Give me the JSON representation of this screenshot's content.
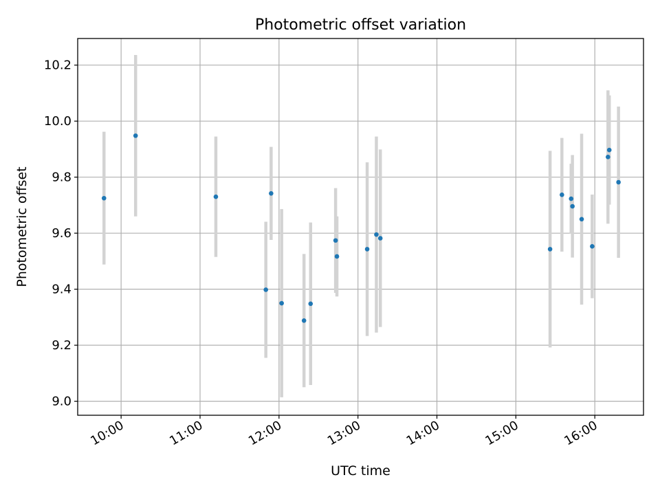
{
  "chart_data": {
    "type": "scatter",
    "title": "Photometric offset variation",
    "xlabel": "UTC time",
    "ylabel": "Photometric offset",
    "x_is_time": true,
    "xlim": [
      "09:27",
      "16:37"
    ],
    "ylim": [
      8.95,
      10.295
    ],
    "xticks": [
      "10:00",
      "11:00",
      "12:00",
      "13:00",
      "14:00",
      "15:00",
      "16:00"
    ],
    "yticks": [
      9.0,
      9.2,
      9.4,
      9.6,
      9.8,
      10.0,
      10.2
    ],
    "ytick_labels": [
      "9.0",
      "9.2",
      "9.4",
      "9.6",
      "9.8",
      "10.0",
      "10.2"
    ],
    "grid": true,
    "point_color": "#1f77b4",
    "errorbar_color": "#d3d3d3",
    "points": [
      {
        "x": "09:47",
        "y": 9.725,
        "err": 0.237
      },
      {
        "x": "10:11",
        "y": 9.948,
        "err": 0.288
      },
      {
        "x": "11:12",
        "y": 9.73,
        "err": 0.215
      },
      {
        "x": "11:50",
        "y": 9.398,
        "err": 0.243
      },
      {
        "x": "11:54",
        "y": 9.742,
        "err": 0.166
      },
      {
        "x": "12:02",
        "y": 9.35,
        "err": 0.336
      },
      {
        "x": "12:19",
        "y": 9.288,
        "err": 0.238
      },
      {
        "x": "12:24",
        "y": 9.348,
        "err": 0.29
      },
      {
        "x": "12:43",
        "y": 9.574,
        "err": 0.187
      },
      {
        "x": "12:44",
        "y": 9.517,
        "err": 0.143
      },
      {
        "x": "13:07",
        "y": 9.543,
        "err": 0.31
      },
      {
        "x": "13:14",
        "y": 9.595,
        "err": 0.35
      },
      {
        "x": "13:17",
        "y": 9.582,
        "err": 0.317
      },
      {
        "x": "15:26",
        "y": 9.543,
        "err": 0.351
      },
      {
        "x": "15:35",
        "y": 9.737,
        "err": 0.203
      },
      {
        "x": "15:42",
        "y": 9.723,
        "err": 0.125
      },
      {
        "x": "15:43",
        "y": 9.696,
        "err": 0.183
      },
      {
        "x": "15:50",
        "y": 9.65,
        "err": 0.305
      },
      {
        "x": "15:58",
        "y": 9.553,
        "err": 0.185
      },
      {
        "x": "16:10",
        "y": 9.872,
        "err": 0.238
      },
      {
        "x": "16:11",
        "y": 9.897,
        "err": 0.195
      },
      {
        "x": "16:18",
        "y": 9.782,
        "err": 0.27
      }
    ]
  }
}
